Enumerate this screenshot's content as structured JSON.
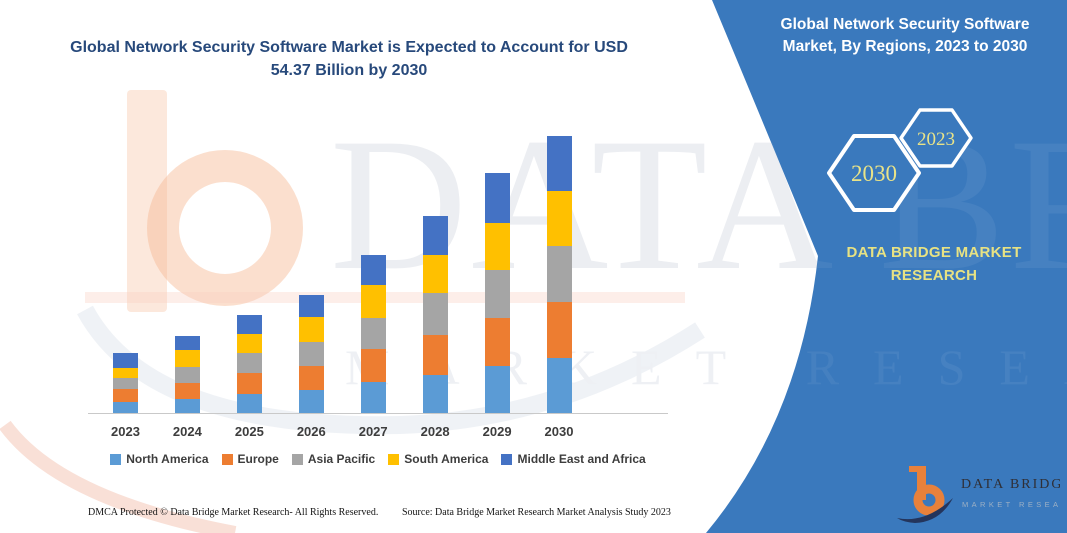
{
  "title": "Global Network Security Software Market is Expected to Account for USD 54.37 Billion by 2030",
  "panel": {
    "heading": "Global Network Security Software Market, By Regions, 2023 to 2030",
    "hex_large": "2030",
    "hex_small": "2023",
    "brand": "DATA BRIDGE MARKET RESEARCH",
    "bg_color": "#3a79bd",
    "text_yellow": "#e9e388"
  },
  "watermark": {
    "line1": "DATA BRIDGE",
    "line2": "MARKET RESEARCH"
  },
  "chart_data": {
    "type": "bar",
    "stacked": true,
    "title": "Global Network Security Software Market, By Regions, 2023 to 2030",
    "unit": "USD billion (estimated from bar heights; 2030 total = 54.37)",
    "categories": [
      "2023",
      "2024",
      "2025",
      "2026",
      "2027",
      "2028",
      "2029",
      "2030"
    ],
    "series": [
      {
        "name": "North America",
        "color": "#5B9BD5",
        "values": [
          2.2,
          2.7,
          3.8,
          4.6,
          6.0,
          7.4,
          9.1,
          10.7
        ]
      },
      {
        "name": "Europe",
        "color": "#ED7D31",
        "values": [
          2.4,
          3.2,
          4.1,
          4.6,
          6.6,
          7.9,
          9.5,
          11.0
        ]
      },
      {
        "name": "Asia Pacific",
        "color": "#A5A5A5",
        "values": [
          2.3,
          3.1,
          3.9,
          4.8,
          6.0,
          8.2,
          9.5,
          11.0
        ]
      },
      {
        "name": "South America",
        "color": "#FFC000",
        "values": [
          2.0,
          3.3,
          3.7,
          4.8,
          6.5,
          7.5,
          9.2,
          10.8
        ]
      },
      {
        "name": "Middle East and Africa",
        "color": "#4472C4",
        "values": [
          2.8,
          2.9,
          3.7,
          4.4,
          5.9,
          7.6,
          9.7,
          10.9
        ]
      }
    ],
    "totals": [
      11.7,
      15.2,
      19.2,
      23.2,
      31.0,
      38.6,
      47.0,
      54.4
    ],
    "x_tick_labels": [
      "2023",
      "2024",
      "2025",
      "2026",
      "2027",
      "2028",
      "2029",
      "2030"
    ],
    "y_axis_visible": false,
    "gridlines": false,
    "legend_position": "bottom"
  },
  "footer": {
    "dmca": "DMCA Protected © Data Bridge Market Research-  All Rights Reserved.",
    "source": "Source: Data Bridge Market Research  Market Analysis Study 2023"
  },
  "logo": {
    "name": "DATA BRIDGE",
    "tagline": "MARKET RESEARCH"
  }
}
